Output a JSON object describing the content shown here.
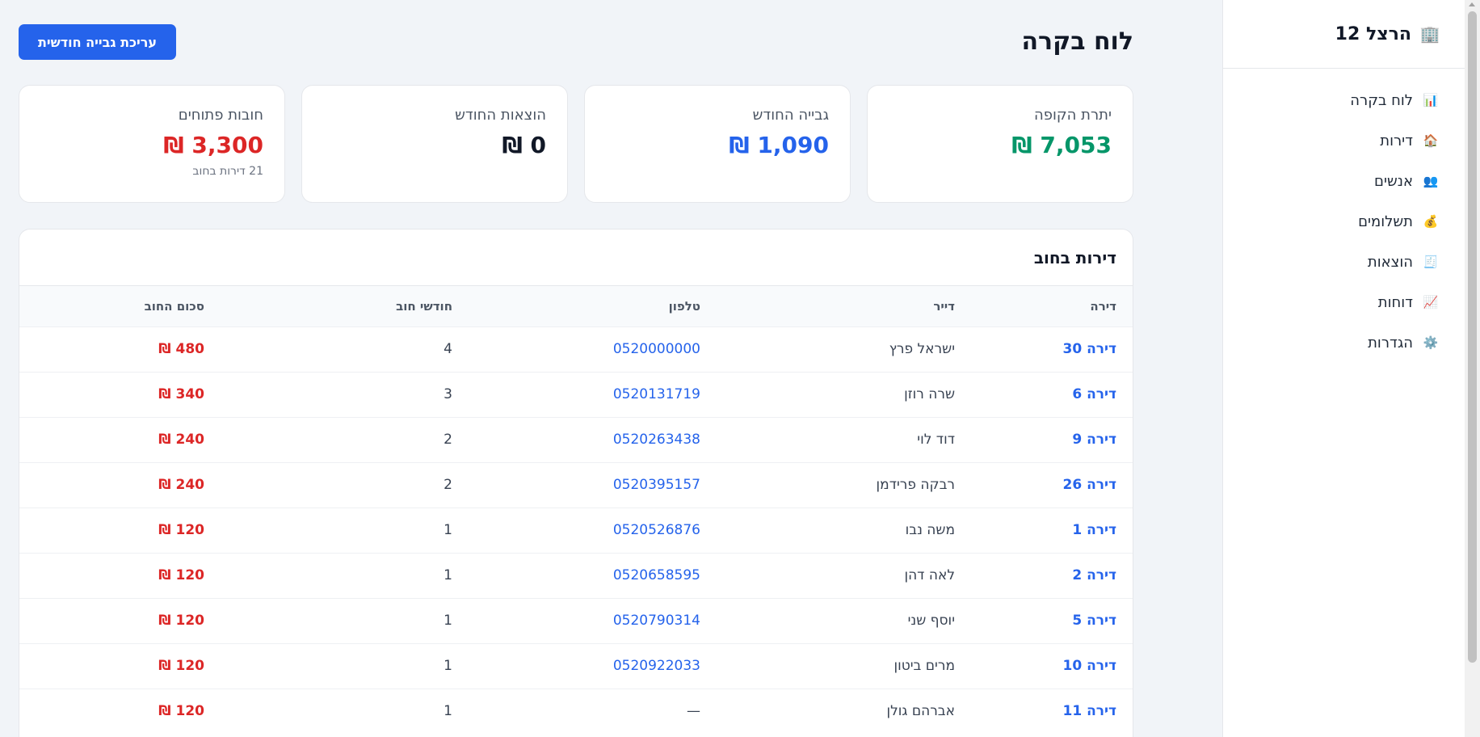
{
  "sidebar": {
    "title": "הרצל 12",
    "brand_icon": "🏢",
    "items": [
      {
        "label": "לוח בקרה",
        "icon": "📊"
      },
      {
        "label": "דירות",
        "icon": "🏠"
      },
      {
        "label": "אנשים",
        "icon": "👥"
      },
      {
        "label": "תשלומים",
        "icon": "💰"
      },
      {
        "label": "הוצאות",
        "icon": "🧾"
      },
      {
        "label": "דוחות",
        "icon": "📈"
      },
      {
        "label": "הגדרות",
        "icon": "⚙️"
      }
    ]
  },
  "header": {
    "title": "לוח בקרה",
    "primary_button": "עריכת גבייה חודשית"
  },
  "stats": [
    {
      "label": "יתרת הקופה",
      "value": "7,053 ₪",
      "color": "#059669"
    },
    {
      "label": "גבייה החודש",
      "value": "1,090 ₪",
      "color": "#2563eb"
    },
    {
      "label": "הוצאות החודש",
      "value": "0 ₪",
      "color": "#111827"
    },
    {
      "label": "חובות פתוחים",
      "value": "3,300 ₪",
      "color": "#dc2626",
      "sub": "21 דירות בחוב"
    }
  ],
  "debt_table": {
    "title": "דירות בחוב",
    "columns": [
      "דירה",
      "דייר",
      "טלפון",
      "חודשי חוב",
      "סכום החוב"
    ],
    "rows": [
      {
        "apartment": "דירה 30",
        "tenant": "ישראל פרץ",
        "phone": "0520000000",
        "months": "4",
        "amount": "480 ₪"
      },
      {
        "apartment": "דירה 6",
        "tenant": "שרה רוזן",
        "phone": "0520131719",
        "months": "3",
        "amount": "340 ₪"
      },
      {
        "apartment": "דירה 9",
        "tenant": "דוד לוי",
        "phone": "0520263438",
        "months": "2",
        "amount": "240 ₪"
      },
      {
        "apartment": "דירה 26",
        "tenant": "רבקה פרידמן",
        "phone": "0520395157",
        "months": "2",
        "amount": "240 ₪"
      },
      {
        "apartment": "דירה 1",
        "tenant": "משה נבו",
        "phone": "0520526876",
        "months": "1",
        "amount": "120 ₪"
      },
      {
        "apartment": "דירה 2",
        "tenant": "לאה דהן",
        "phone": "0520658595",
        "months": "1",
        "amount": "120 ₪"
      },
      {
        "apartment": "דירה 5",
        "tenant": "יוסף שני",
        "phone": "0520790314",
        "months": "1",
        "amount": "120 ₪"
      },
      {
        "apartment": "דירה 10",
        "tenant": "מרים ביטון",
        "phone": "0520922033",
        "months": "1",
        "amount": "120 ₪"
      },
      {
        "apartment": "דירה 11",
        "tenant": "אברהם גולן",
        "phone": "—",
        "months": "1",
        "amount": "120 ₪"
      }
    ]
  }
}
